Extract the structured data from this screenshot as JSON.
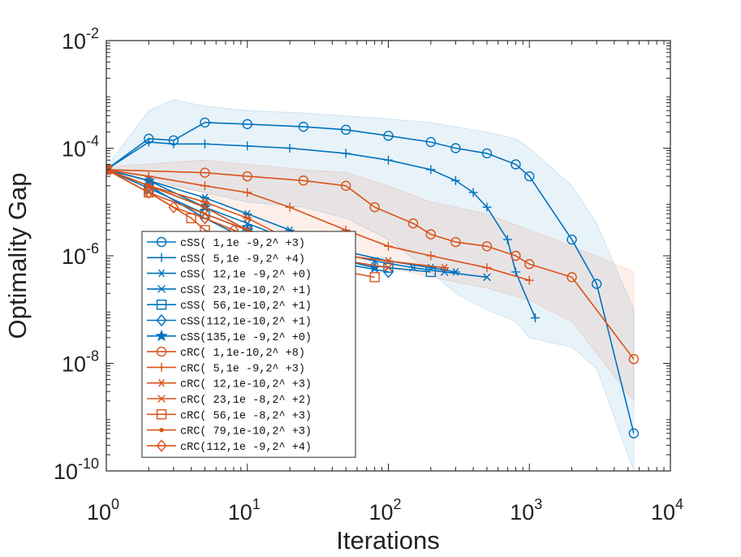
{
  "chart_data": {
    "type": "line",
    "xlabel": "Iterations",
    "ylabel": "Optimality Gap",
    "xscale": "log",
    "yscale": "log",
    "xlim": [
      1,
      10000
    ],
    "ylim": [
      1e-10,
      0.01
    ],
    "grid": false,
    "legend_position": "lower-left",
    "x_ticks": [
      {
        "base": "10",
        "exp": "0",
        "value": 1
      },
      {
        "base": "10",
        "exp": "1",
        "value": 10
      },
      {
        "base": "10",
        "exp": "2",
        "value": 100
      },
      {
        "base": "10",
        "exp": "3",
        "value": 1000
      },
      {
        "base": "10",
        "exp": "4",
        "value": 10000
      }
    ],
    "y_ticks": [
      {
        "base": "10",
        "exp": "-2",
        "value": 0.01
      },
      {
        "base": "10",
        "exp": "-4",
        "value": 0.0001
      },
      {
        "base": "10",
        "exp": "-6",
        "value": 1e-06
      },
      {
        "base": "10",
        "exp": "-8",
        "value": 1e-08
      },
      {
        "base": "10",
        "exp": "-10",
        "value": 1e-10
      }
    ],
    "colors": {
      "cSS": "#0072BD",
      "cRC": "#D95319"
    },
    "series": [
      {
        "name": "cSS(  1,1e -9,2^ +3)",
        "color": "#0072BD",
        "marker": "circle",
        "x": [
          1,
          2,
          3,
          5,
          10,
          25,
          50,
          100,
          200,
          300,
          500,
          800,
          1000,
          2000,
          3000,
          5500
        ],
        "y": [
          4e-05,
          0.00015,
          0.00014,
          0.0003,
          0.00028,
          0.00025,
          0.00022,
          0.00017,
          0.00013,
          0.0001,
          8e-05,
          5e-05,
          3e-05,
          2e-06,
          3e-07,
          5e-10
        ]
      },
      {
        "name": "cSS(  5,1e -9,2^ +4)",
        "color": "#0072BD",
        "marker": "plus",
        "x": [
          1,
          2,
          3,
          5,
          10,
          20,
          50,
          100,
          200,
          300,
          400,
          500,
          700,
          800,
          1100
        ],
        "y": [
          4e-05,
          0.00013,
          0.00012,
          0.00012,
          0.00011,
          0.0001,
          8e-05,
          6e-05,
          4e-05,
          2.5e-05,
          1.5e-05,
          8e-06,
          2e-06,
          5e-07,
          7e-08
        ]
      },
      {
        "name": "cSS( 12,1e -9,2^ +0)",
        "color": "#0072BD",
        "marker": "asterisk",
        "x": [
          1,
          2,
          5,
          10,
          20,
          30,
          50,
          100,
          200,
          300
        ],
        "y": [
          4e-05,
          2.5e-05,
          1.2e-05,
          6e-06,
          3e-06,
          2e-06,
          1.2e-06,
          8e-07,
          6e-07,
          5e-07
        ]
      },
      {
        "name": "cSS( 23,1e-10,2^ +1)",
        "color": "#0072BD",
        "marker": "x",
        "x": [
          1,
          2,
          5,
          10,
          20,
          40,
          80,
          150,
          250,
          500
        ],
        "y": [
          4e-05,
          2e-05,
          8e-06,
          4e-06,
          2e-06,
          1.2e-06,
          8e-07,
          6e-07,
          5e-07,
          4e-07
        ]
      },
      {
        "name": "cSS( 56,1e-10,2^ +1)",
        "color": "#0072BD",
        "marker": "square",
        "x": [
          1,
          2,
          5,
          10,
          20,
          50,
          100,
          200
        ],
        "y": [
          4e-05,
          1.8e-05,
          6e-06,
          3e-06,
          1.5e-06,
          8e-07,
          6e-07,
          5e-07
        ]
      },
      {
        "name": "cSS(112,1e-10,2^ +1)",
        "color": "#0072BD",
        "marker": "diamond",
        "x": [
          1,
          2,
          5,
          10,
          20,
          50,
          100
        ],
        "y": [
          4e-05,
          2e-05,
          5e-06,
          2e-06,
          1e-06,
          7e-07,
          5e-07
        ]
      },
      {
        "name": "cSS(135,1e -9,2^ +0)",
        "color": "#0072BD",
        "marker": "pentagram",
        "x": [
          1,
          2,
          5,
          10,
          20,
          50,
          80
        ],
        "y": [
          4e-05,
          2.5e-05,
          8e-06,
          3e-06,
          1.5e-06,
          8e-07,
          6e-07
        ]
      },
      {
        "name": "cRC(  1,1e-10,2^ +8)",
        "color": "#D95319",
        "marker": "circle",
        "x": [
          1,
          5,
          10,
          25,
          50,
          80,
          150,
          200,
          300,
          500,
          800,
          1000,
          2000,
          5500
        ],
        "y": [
          4e-05,
          3.5e-05,
          3e-05,
          2.5e-05,
          2e-05,
          8e-06,
          4e-06,
          2.5e-06,
          1.8e-06,
          1.5e-06,
          1e-06,
          7e-07,
          4e-07,
          1.2e-08
        ]
      },
      {
        "name": "cRC(  5,1e -9,2^ +3)",
        "color": "#D95319",
        "marker": "plus",
        "x": [
          1,
          2,
          5,
          10,
          20,
          50,
          100,
          200,
          500,
          1000
        ],
        "y": [
          4e-05,
          3e-05,
          2e-05,
          1.5e-05,
          8e-06,
          3e-06,
          1.5e-06,
          1e-06,
          6e-07,
          3.5e-07
        ]
      },
      {
        "name": "cRC( 12,1e-10,2^ +3)",
        "color": "#D95319",
        "marker": "asterisk",
        "x": [
          1,
          2,
          5,
          10,
          20,
          50,
          100,
          250
        ],
        "y": [
          4e-05,
          2e-05,
          1e-05,
          5e-06,
          2e-06,
          1e-06,
          8e-07,
          6e-07
        ]
      },
      {
        "name": "cRC( 23,1e -8,2^ +2)",
        "color": "#D95319",
        "marker": "x",
        "x": [
          1,
          2,
          5,
          10,
          20,
          50,
          100
        ],
        "y": [
          4e-05,
          1.5e-05,
          6e-06,
          3e-06,
          1.5e-06,
          8e-07,
          6e-07
        ]
      },
      {
        "name": "cRC( 56,1e -8,2^ +3)",
        "color": "#D95319",
        "marker": "square",
        "x": [
          1,
          2,
          4,
          5,
          10,
          20,
          50,
          80
        ],
        "y": [
          4e-05,
          1.5e-05,
          5e-06,
          3e-06,
          1.5e-06,
          1e-06,
          5e-07,
          4e-07
        ]
      },
      {
        "name": "cRC( 79,1e-10,2^ +3)",
        "color": "#D95319",
        "marker": "point",
        "x": [
          1,
          2,
          5,
          10,
          20,
          40
        ],
        "y": [
          4e-05,
          2e-05,
          8e-06,
          3e-06,
          1.5e-06,
          7e-07
        ]
      },
      {
        "name": "cRC(112,1e -9,2^ +4)",
        "color": "#D95319",
        "marker": "diamond",
        "x": [
          1,
          2,
          3,
          5,
          8,
          15,
          30
        ],
        "y": [
          4e-05,
          1.5e-05,
          8e-06,
          5e-06,
          3e-06,
          1.5e-06,
          8e-07
        ]
      }
    ],
    "shaded_bands": [
      {
        "series": "cSS(  1,1e -9,2^ +3)",
        "color": "#0072BD",
        "x": [
          1,
          2,
          3,
          5,
          10,
          25,
          50,
          100,
          200,
          300,
          500,
          800,
          1000,
          2000,
          3000,
          5500
        ],
        "upper": [
          4.5e-05,
          0.0005,
          0.0008,
          0.0006,
          0.0005,
          0.00045,
          0.0004,
          0.00035,
          0.0003,
          0.00025,
          0.0002,
          0.00015,
          0.0001,
          2e-05,
          4e-06,
          1e-07
        ],
        "lower": [
          3.5e-05,
          3e-05,
          2e-05,
          1.5e-05,
          1e-05,
          8e-06,
          5e-06,
          2e-06,
          5e-07,
          2e-07,
          1e-07,
          6e-08,
          3e-08,
          2e-08,
          8e-09,
          1e-10
        ]
      },
      {
        "series": "cRC(  1,1e-10,2^ +8)",
        "color": "#D95319",
        "x": [
          1,
          5,
          10,
          25,
          50,
          100,
          200,
          500,
          1000,
          2000,
          5500
        ],
        "upper": [
          4.5e-05,
          6e-05,
          5e-05,
          4e-05,
          3.5e-05,
          2e-05,
          1e-05,
          6e-06,
          3e-06,
          1.5e-06,
          5e-07
        ],
        "lower": [
          3.5e-05,
          1.5e-05,
          5e-06,
          2e-06,
          1e-06,
          6e-07,
          4e-07,
          2.5e-07,
          1.5e-07,
          6e-08,
          2e-09
        ]
      }
    ]
  }
}
